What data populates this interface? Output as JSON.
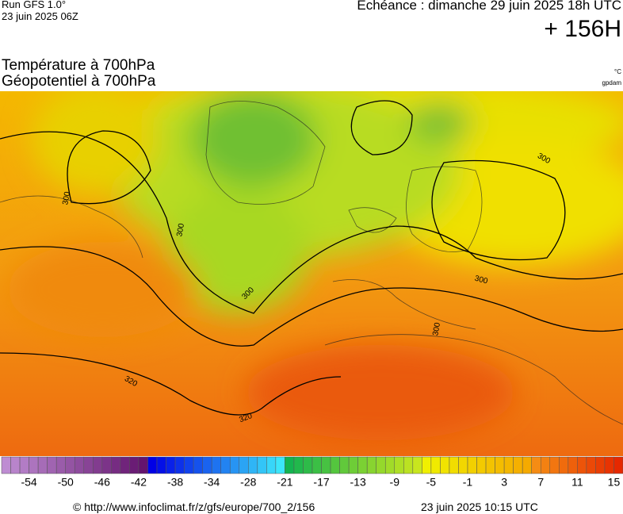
{
  "header": {
    "run": "Run GFS 1.0°",
    "run_date": "23 juin 2025 06Z",
    "forecast": "Echéance : dimanche 29 juin 2025 18h UTC",
    "lead": "+ 156H",
    "title_temp": "Température à 700hPa",
    "title_geo": "Géopotentiel à 700hPa",
    "unit_temp": "°C",
    "unit_geo": "gpdam"
  },
  "map": {
    "contour_labels": [
      300,
      300,
      300,
      300,
      300,
      300,
      320,
      320
    ]
  },
  "colorbar": {
    "labels": [
      -54,
      -50,
      -46,
      -42,
      -38,
      -34,
      -28,
      -21,
      -17,
      -13,
      -9,
      -5,
      -1,
      3,
      7,
      11,
      15
    ]
  },
  "footer": {
    "source": "© http://www.infoclimat.fr/z/gfs/europe/700_2/156",
    "timestamp": "23 juin 2025 10:15 UTC"
  }
}
